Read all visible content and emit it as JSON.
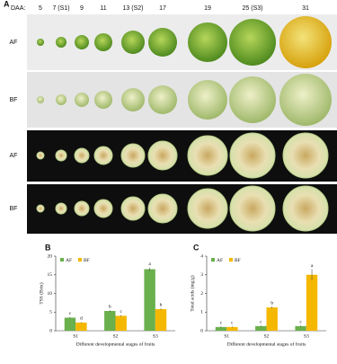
{
  "panel_a": {
    "label": "A",
    "daa_label": "DAA:",
    "stages": [
      "5",
      "7 (S1)",
      "9",
      "11",
      "13 (S2)",
      "17",
      "19",
      "25 (S3)",
      "31"
    ],
    "rows": [
      "AF",
      "BF",
      "AF",
      "BF"
    ]
  },
  "chart_data": [
    {
      "type": "bar",
      "label": "B",
      "ylabel": "TSS (Brix)",
      "xlabel": "Different developmental stages of fruits",
      "categories": [
        "S1",
        "S2",
        "S3"
      ],
      "ylim": [
        0,
        20
      ],
      "yticks": [
        0,
        5,
        10,
        15,
        20
      ],
      "series": [
        {
          "name": "AF",
          "color": "#6ab04c",
          "values": [
            3.5,
            5.3,
            16.5
          ],
          "errors": [
            0.2,
            0.2,
            0.4
          ],
          "letters": [
            "c",
            "b",
            "a"
          ]
        },
        {
          "name": "BF",
          "color": "#f5b800",
          "values": [
            2.2,
            4.0,
            5.8
          ],
          "errors": [
            0.1,
            0.2,
            0.2
          ],
          "letters": [
            "d",
            "c",
            "b"
          ]
        }
      ]
    },
    {
      "type": "bar",
      "label": "C",
      "ylabel": "Total acids (mg/g)",
      "xlabel": "Different developmental stages of fruits",
      "categories": [
        "S1",
        "S2",
        "S3"
      ],
      "ylim": [
        0,
        4
      ],
      "yticks": [
        0,
        1,
        2,
        3,
        4
      ],
      "series": [
        {
          "name": "AF",
          "color": "#6ab04c",
          "values": [
            0.2,
            0.25,
            0.25
          ],
          "errors": [
            0.03,
            0.03,
            0.03
          ],
          "letters": [
            "c",
            "c",
            "c"
          ]
        },
        {
          "name": "BF",
          "color": "#f5b800",
          "values": [
            0.2,
            1.25,
            3.0
          ],
          "errors": [
            0.03,
            0.05,
            0.3
          ],
          "letters": [
            "c",
            "b",
            "a"
          ]
        }
      ]
    }
  ]
}
